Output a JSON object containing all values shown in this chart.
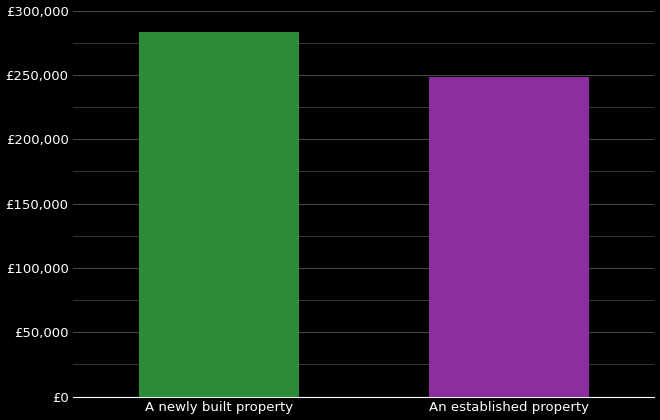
{
  "categories": [
    "A newly built property",
    "An established property"
  ],
  "values": [
    283000,
    248000
  ],
  "bar_colors": [
    "#2e8b3a",
    "#8b2fa0"
  ],
  "background_color": "#000000",
  "text_color": "#ffffff",
  "grid_color": "#4a4a4a",
  "ylim": [
    0,
    300000
  ],
  "yticks_major": [
    0,
    50000,
    100000,
    150000,
    200000,
    250000,
    300000
  ],
  "yticks_minor": [
    25000,
    75000,
    125000,
    175000,
    225000,
    275000
  ],
  "bar_width": 0.55,
  "x_positions": [
    1,
    2
  ],
  "xlim": [
    0.5,
    2.5
  ],
  "figsize": [
    6.6,
    4.2
  ],
  "dpi": 100,
  "label_fontsize": 9.5,
  "tick_fontsize": 9.5
}
